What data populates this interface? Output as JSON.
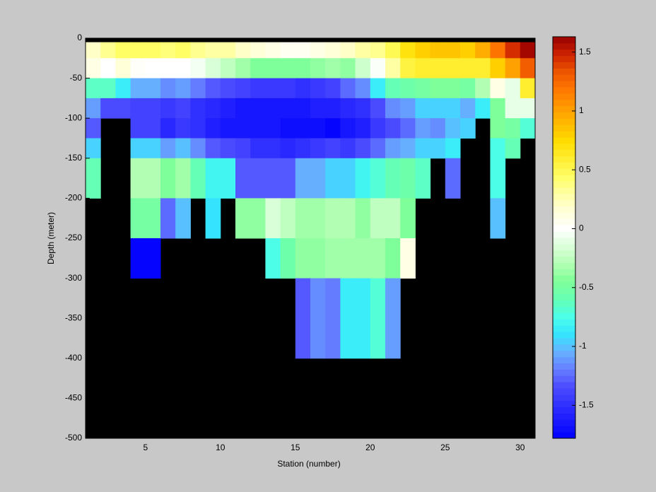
{
  "chart_data": {
    "type": "heatmap",
    "x_label": "Station (number)",
    "y_label": "Depth (meter)",
    "x_edges": [
      1,
      2,
      3,
      4,
      5,
      6,
      7,
      8,
      9,
      10,
      11,
      12,
      13,
      14,
      15,
      16,
      17,
      18,
      19,
      20,
      21,
      22,
      23,
      24,
      25,
      26,
      27,
      28,
      29,
      30,
      31
    ],
    "y_edges": [
      -5,
      -25,
      -50,
      -75,
      -100,
      -125,
      -150,
      -200,
      -250,
      -300,
      -400
    ],
    "z": [
      [
        0.2,
        0.35,
        0.45,
        0.45,
        0.45,
        0.4,
        0.45,
        0.35,
        0.3,
        0.3,
        0.2,
        0.15,
        0.1,
        0.05,
        0.05,
        0.1,
        0.15,
        0.2,
        0.3,
        0.35,
        0.5,
        0.7,
        0.8,
        0.85,
        0.85,
        0.8,
        0.95,
        1.2,
        1.45,
        1.6
      ],
      [
        0.1,
        0,
        0.15,
        0.02,
        0,
        0,
        0,
        -0.05,
        -0.15,
        -0.25,
        -0.35,
        -0.45,
        -0.45,
        -0.45,
        -0.45,
        -0.4,
        -0.35,
        -0.4,
        -0.2,
        -0.02,
        0.3,
        0.55,
        0.6,
        0.6,
        0.6,
        0.6,
        0.6,
        0.8,
        1.0,
        1.3
      ],
      [
        -0.65,
        -0.65,
        -0.85,
        -1.05,
        -1.05,
        -1.15,
        -1.1,
        -1.2,
        -1.3,
        -1.35,
        -1.4,
        -1.45,
        -1.45,
        -1.45,
        -1.5,
        -1.45,
        -1.4,
        -1.25,
        -1.15,
        -0.85,
        -0.6,
        -0.55,
        -0.5,
        -0.45,
        -0.45,
        -0.5,
        -0.3,
        0.1,
        -0.1,
        0.6
      ],
      [
        -1.1,
        -1.35,
        -1.35,
        -1.4,
        -1.4,
        -1.45,
        -1.4,
        -1.5,
        -1.55,
        -1.6,
        -1.65,
        -1.65,
        -1.65,
        -1.65,
        -1.65,
        -1.6,
        -1.6,
        -1.55,
        -1.5,
        -1.35,
        -1.15,
        -1.1,
        -0.95,
        -0.95,
        -0.95,
        -1.05,
        -0.85,
        -0.45,
        -0.1,
        -0.1
      ],
      [
        -1.3,
        null,
        null,
        -1.4,
        -1.4,
        -1.55,
        -1.45,
        -1.5,
        -1.6,
        -1.65,
        -1.65,
        -1.65,
        -1.65,
        -1.7,
        -1.7,
        -1.7,
        -1.75,
        -1.65,
        -1.6,
        -1.45,
        -1.35,
        -1.25,
        -1.1,
        -1.15,
        -1.0,
        -0.95,
        null,
        -0.45,
        -0.5,
        -0.7
      ],
      [
        -0.95,
        null,
        null,
        -0.95,
        -0.95,
        -1.1,
        -1.0,
        -1.15,
        -1.3,
        -1.35,
        -1.4,
        -1.5,
        -1.5,
        -1.55,
        -1.5,
        -1.45,
        -1.4,
        -1.45,
        -1.35,
        -1.25,
        -1.1,
        -1.05,
        -0.95,
        -0.95,
        -0.85,
        null,
        null,
        -0.75,
        -0.6,
        null
      ],
      [
        -0.6,
        null,
        null,
        -0.3,
        -0.3,
        -0.45,
        -0.35,
        -0.6,
        -0.8,
        -0.8,
        -1.3,
        -1.3,
        -1.3,
        -1.3,
        -1.05,
        -1.05,
        -0.95,
        -0.95,
        -0.8,
        -0.7,
        -0.6,
        -0.55,
        -0.65,
        null,
        -1.25,
        null,
        null,
        -0.75,
        null,
        null
      ],
      [
        null,
        null,
        null,
        -0.5,
        -0.5,
        -1.25,
        -1.0,
        null,
        -0.9,
        null,
        -0.4,
        -0.4,
        -0.15,
        -0.25,
        -0.35,
        -0.35,
        -0.3,
        -0.3,
        -0.4,
        -0.25,
        -0.25,
        -0.45,
        null,
        null,
        null,
        null,
        null,
        -1.0,
        null,
        null
      ],
      [
        null,
        null,
        null,
        -1.75,
        -1.75,
        null,
        null,
        null,
        null,
        null,
        null,
        null,
        -0.75,
        -0.55,
        -0.4,
        -0.4,
        -0.35,
        -0.35,
        -0.35,
        -0.35,
        -0.45,
        0.1,
        null,
        null,
        null,
        null,
        null,
        null,
        null,
        null
      ],
      [
        null,
        null,
        null,
        null,
        null,
        null,
        null,
        null,
        null,
        null,
        null,
        null,
        null,
        null,
        -1.3,
        -1.15,
        -1.2,
        -0.85,
        -0.85,
        -0.7,
        -1.1,
        null,
        null,
        null,
        null,
        null,
        null,
        null,
        null,
        null
      ]
    ],
    "xlim": [
      1,
      31
    ],
    "xticks": [
      5,
      10,
      15,
      20,
      25,
      30
    ],
    "ylim": [
      -500,
      0
    ],
    "yticks": [
      0,
      -50,
      -100,
      -150,
      -200,
      -250,
      -300,
      -350,
      -400,
      -450,
      -500
    ],
    "clim": [
      -1.78,
      1.63
    ],
    "colorbar_ticks": [
      1.5,
      1,
      0.5,
      0,
      -0.5,
      -1,
      -1.5
    ],
    "background_color": "#000000",
    "colormap": [
      "#0000ff",
      "#1a1aff",
      "#3333ff",
      "#4d4dff",
      "#6680ff",
      "#66b3ff",
      "#33e6ff",
      "#4dffe6",
      "#66ffb3",
      "#80ff99",
      "#b3ffb3",
      "#d9ffd9",
      "#ffffff",
      "#ffffd9",
      "#ffffa6",
      "#ffff66",
      "#ffee33",
      "#ffdd00",
      "#ffbb00",
      "#ff9900",
      "#ff7700",
      "#ee5500",
      "#cc2200",
      "#990000"
    ]
  }
}
